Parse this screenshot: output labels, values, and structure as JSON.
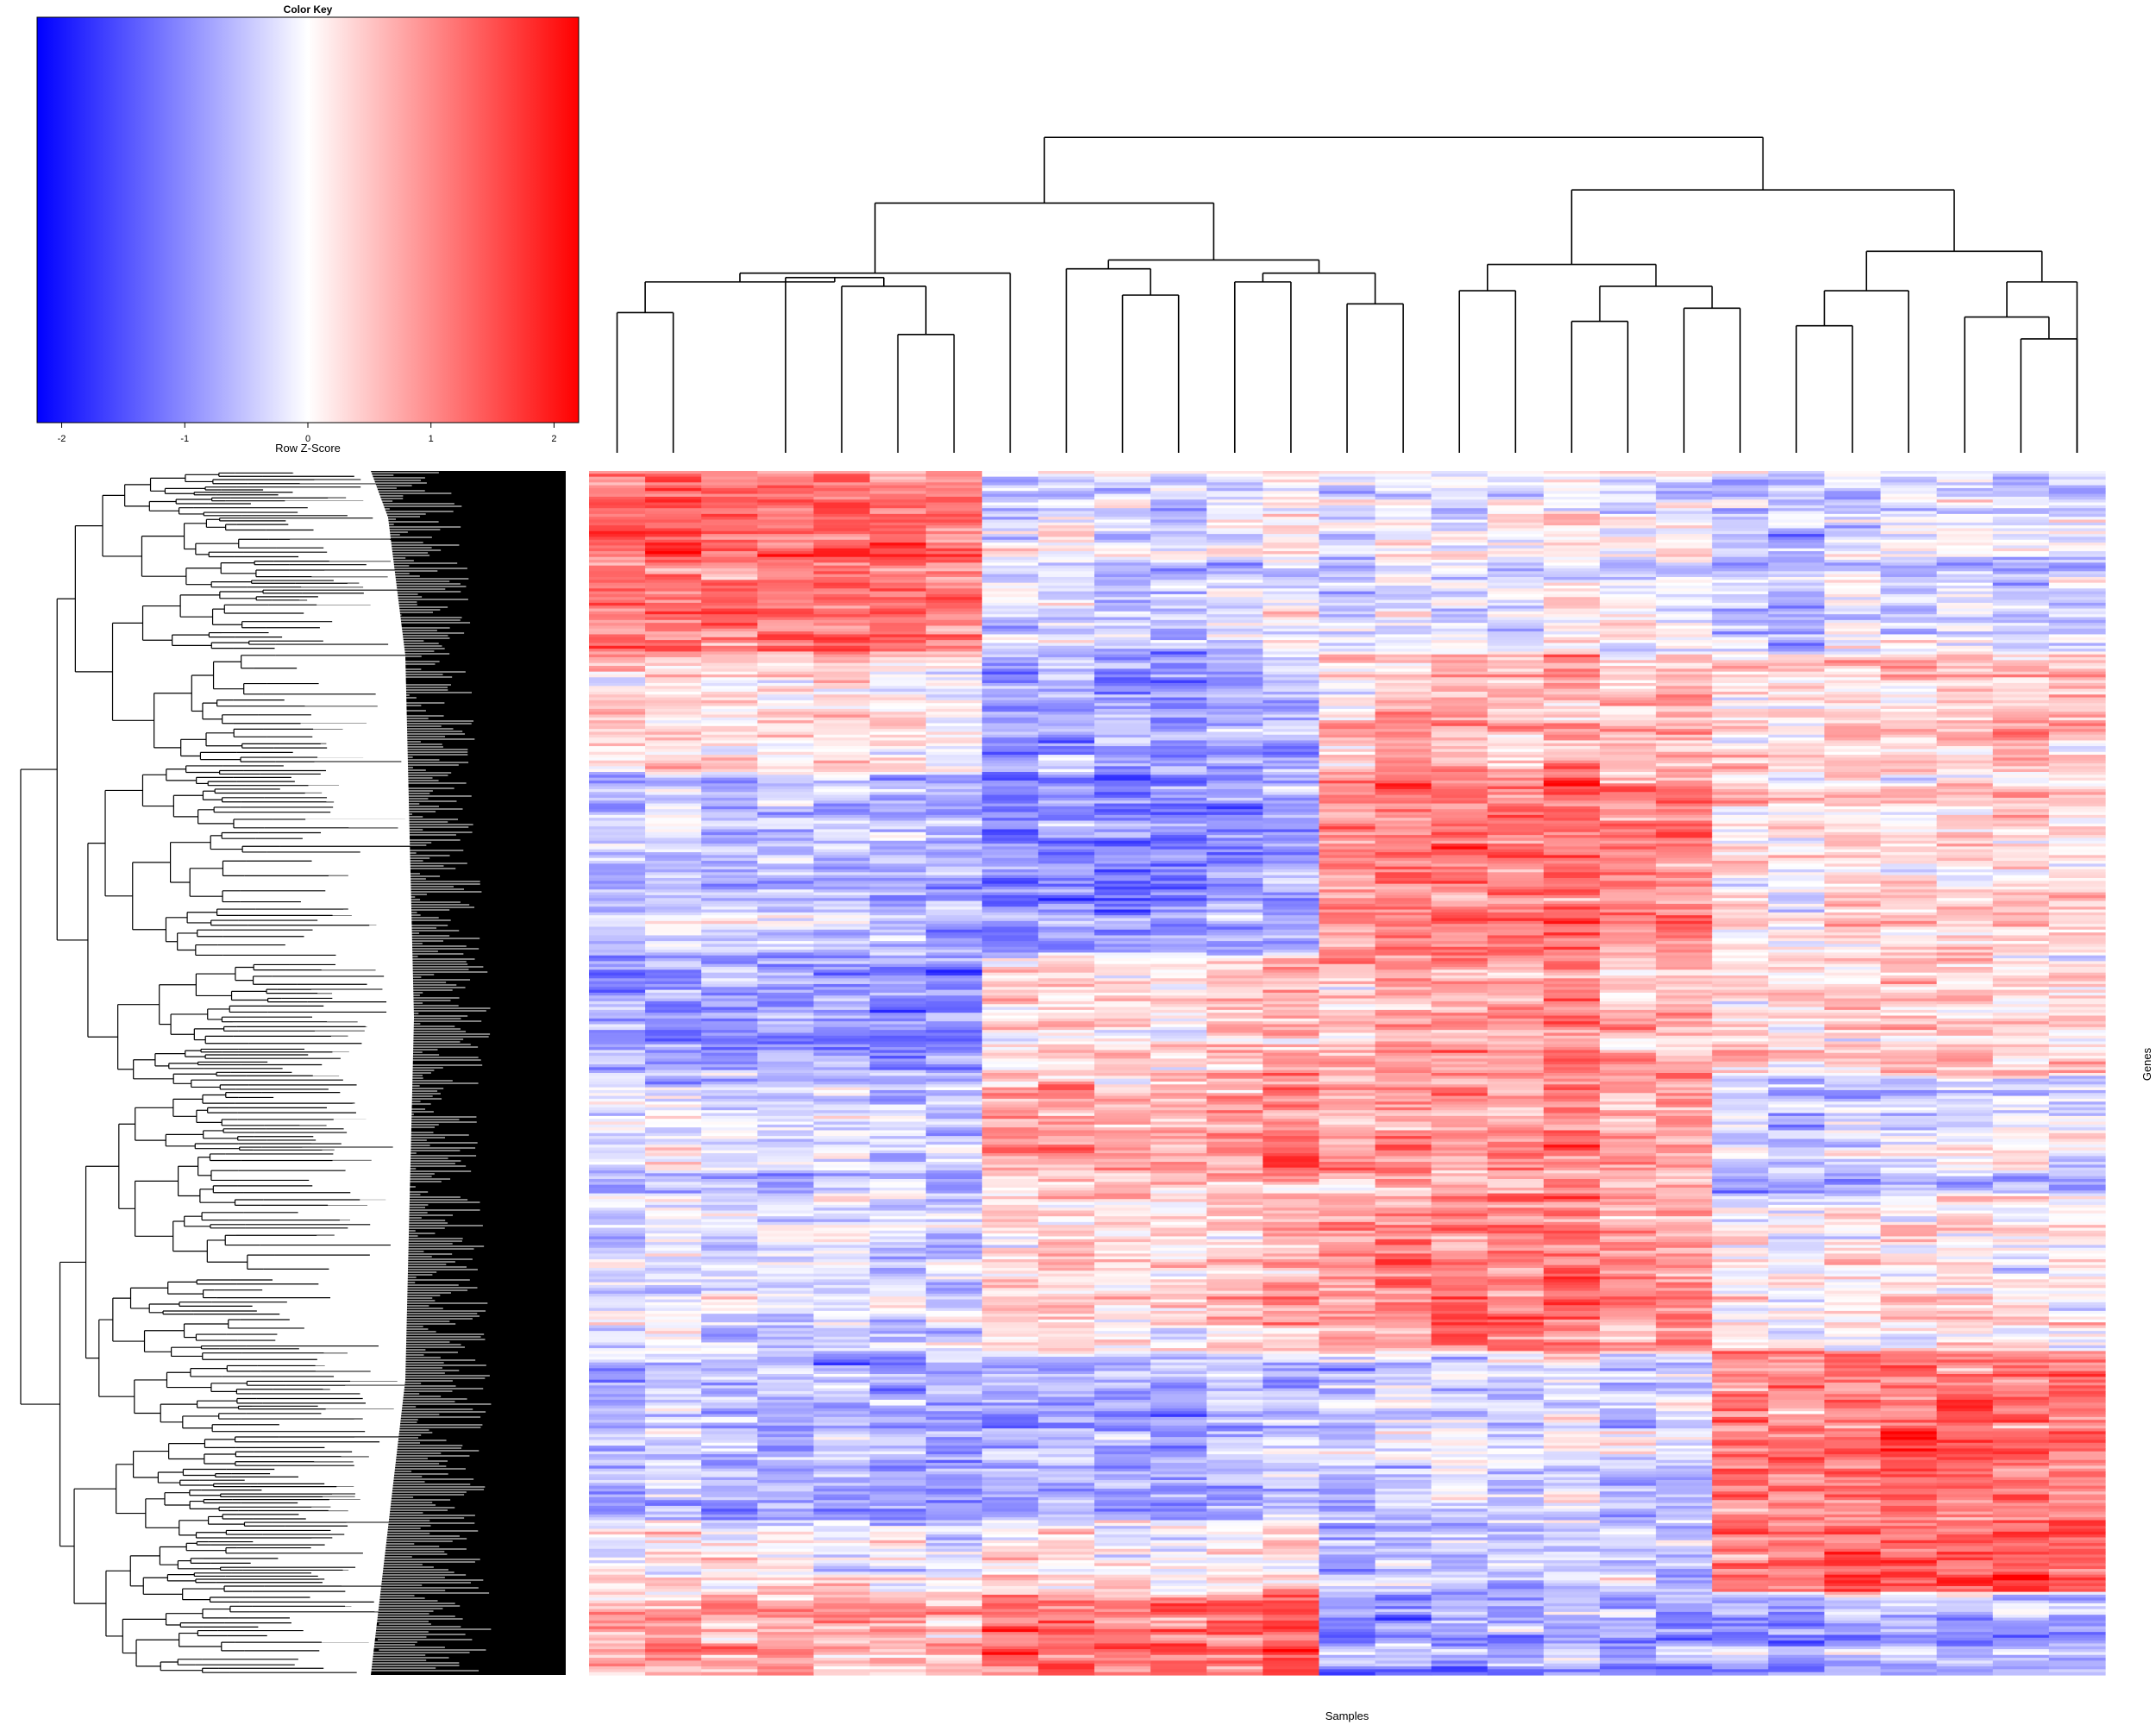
{
  "chart_data": {
    "type": "heatmap",
    "title": "",
    "xlabel": "Samples",
    "ylabel": "Genes",
    "n_columns": 27,
    "n_rows": 420,
    "color_key": {
      "title": "Color Key",
      "label": "Row Z-Score",
      "range": [
        -2.2,
        2.2
      ],
      "ticks": [
        -2,
        -1,
        0,
        1,
        2
      ],
      "tick_labels": [
        "-2",
        "-1",
        "0",
        "1",
        "2"
      ],
      "colors": {
        "low": "#0000ff",
        "mid": "#ffffff",
        "high": "#ff0000"
      }
    },
    "column_dendrogram": "present",
    "row_dendrogram": "present",
    "column_clusters": [
      {
        "cols": [
          0,
          6
        ],
        "row_bands": [
          1.0,
          0.2,
          -0.5,
          -0.8,
          -0.3,
          -0.2,
          -0.6,
          0.0,
          0.6
        ]
      },
      {
        "cols": [
          7,
          12
        ],
        "row_bands": [
          -0.2,
          -0.6,
          -0.8,
          0.3,
          0.7,
          0.4,
          -0.5,
          0.2,
          1.1
        ]
      },
      {
        "cols": [
          13,
          19
        ],
        "row_bands": [
          -0.1,
          0.5,
          0.9,
          0.6,
          0.8,
          0.9,
          -0.3,
          -0.4,
          -0.7
        ]
      },
      {
        "cols": [
          20,
          26
        ],
        "row_bands": [
          -0.3,
          0.4,
          0.2,
          0.3,
          -0.2,
          0.1,
          1.0,
          1.1,
          -0.6
        ]
      }
    ],
    "row_band_breaks": [
      0,
      0.15,
      0.25,
      0.4,
      0.5,
      0.6,
      0.73,
      0.87,
      0.93,
      1.0
    ]
  }
}
